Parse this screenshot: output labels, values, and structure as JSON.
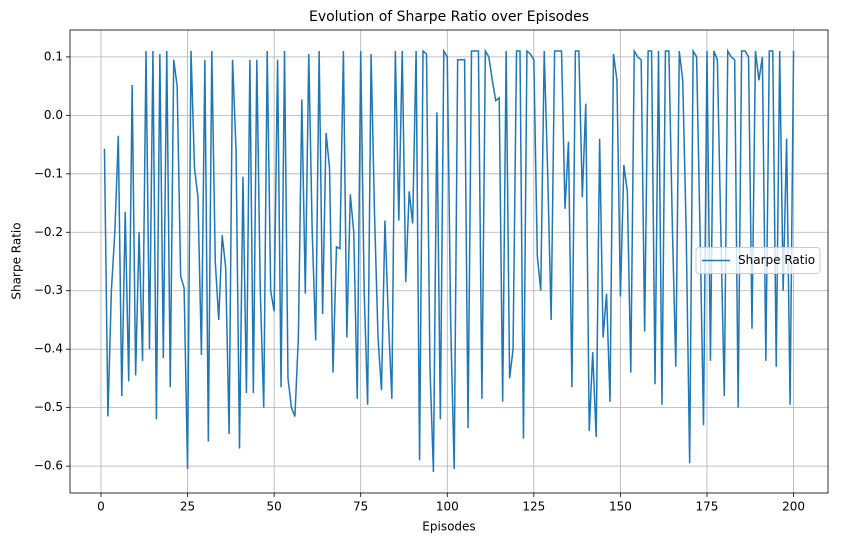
{
  "chart_data": {
    "type": "line",
    "title": "Evolution of Sharpe Ratio over Episodes",
    "x_label": "Episodes",
    "y_label": "Sharpe Ratio",
    "x": [
      1,
      2,
      3,
      4,
      5,
      6,
      7,
      8,
      9,
      10,
      11,
      12,
      13,
      14,
      15,
      16,
      17,
      18,
      19,
      20,
      21,
      22,
      23,
      24,
      25,
      26,
      27,
      28,
      29,
      30,
      31,
      32,
      33,
      34,
      35,
      36,
      37,
      38,
      39,
      40,
      41,
      42,
      43,
      44,
      45,
      46,
      47,
      48,
      49,
      50,
      51,
      52,
      53,
      54,
      55,
      56,
      57,
      58,
      59,
      60,
      61,
      62,
      63,
      64,
      65,
      66,
      67,
      68,
      69,
      70,
      71,
      72,
      73,
      74,
      75,
      76,
      77,
      78,
      79,
      80,
      81,
      82,
      83,
      84,
      85,
      86,
      87,
      88,
      89,
      90,
      91,
      92,
      93,
      94,
      95,
      96,
      97,
      98,
      99,
      100,
      101,
      102,
      103,
      104,
      105,
      106,
      107,
      108,
      109,
      110,
      111,
      112,
      113,
      114,
      115,
      116,
      117,
      118,
      119,
      120,
      121,
      122,
      123,
      124,
      125,
      126,
      127,
      128,
      129,
      130,
      131,
      132,
      133,
      134,
      135,
      136,
      137,
      138,
      139,
      140,
      141,
      142,
      143,
      144,
      145,
      146,
      147,
      148,
      149,
      150,
      151,
      152,
      153,
      154,
      155,
      156,
      157,
      158,
      159,
      160,
      161,
      162,
      163,
      164,
      165,
      166,
      167,
      168,
      169,
      170,
      171,
      172,
      173,
      174,
      175,
      176,
      177,
      178,
      179,
      180,
      181,
      182,
      183,
      184,
      185,
      186,
      187,
      188,
      189,
      190,
      191,
      192,
      193,
      194,
      195,
      196,
      197,
      198,
      199,
      200
    ],
    "series": [
      {
        "name": "Sharpe Ratio",
        "color": "#1f77b4",
        "values": [
          -0.057,
          -0.515,
          -0.3,
          -0.2,
          -0.035,
          -0.48,
          -0.165,
          -0.455,
          0.052,
          -0.445,
          -0.2,
          -0.42,
          0.11,
          -0.4,
          0.11,
          -0.52,
          0.105,
          -0.415,
          0.11,
          -0.465,
          0.095,
          0.05,
          -0.275,
          -0.295,
          -0.605,
          0.11,
          -0.09,
          -0.14,
          -0.41,
          0.095,
          -0.558,
          0.11,
          -0.25,
          -0.35,
          -0.205,
          -0.26,
          -0.545,
          0.095,
          -0.06,
          -0.57,
          -0.105,
          -0.475,
          0.095,
          -0.475,
          0.095,
          -0.3,
          -0.5,
          0.11,
          -0.3,
          -0.335,
          0.095,
          -0.465,
          0.11,
          -0.45,
          -0.5,
          -0.515,
          -0.38,
          0.027,
          -0.305,
          0.105,
          -0.2,
          -0.385,
          0.11,
          -0.34,
          -0.03,
          -0.09,
          -0.44,
          -0.225,
          -0.228,
          0.11,
          -0.38,
          -0.135,
          -0.2,
          -0.485,
          0.11,
          -0.3,
          -0.495,
          0.105,
          -0.17,
          -0.38,
          -0.47,
          -0.18,
          -0.35,
          -0.485,
          0.11,
          -0.18,
          0.11,
          -0.285,
          -0.13,
          -0.185,
          0.11,
          -0.59,
          0.11,
          0.105,
          -0.43,
          -0.61,
          0.005,
          -0.52,
          0.11,
          0.1,
          -0.36,
          -0.605,
          0.095,
          0.095,
          0.095,
          -0.535,
          0.11,
          0.11,
          0.11,
          -0.485,
          0.11,
          0.1,
          0.06,
          0.025,
          0.03,
          -0.49,
          0.11,
          -0.45,
          -0.4,
          0.11,
          0.11,
          -0.553,
          0.11,
          0.105,
          0.095,
          -0.24,
          -0.3,
          0.11,
          -0.1,
          -0.35,
          0.11,
          0.11,
          0.11,
          -0.16,
          -0.045,
          -0.465,
          0.11,
          0.11,
          -0.14,
          0.02,
          -0.54,
          -0.405,
          -0.55,
          -0.04,
          -0.38,
          -0.305,
          -0.49,
          0.105,
          0.06,
          -0.31,
          -0.085,
          -0.13,
          -0.44,
          0.11,
          0.1,
          0.095,
          -0.37,
          0.11,
          0.11,
          -0.46,
          0.11,
          -0.495,
          0.11,
          0.11,
          -0.19,
          -0.43,
          0.11,
          0.06,
          -0.2,
          -0.595,
          0.11,
          0.1,
          -0.2,
          -0.53,
          0.11,
          -0.42,
          0.11,
          0.095,
          -0.2,
          -0.48,
          0.11,
          0.1,
          0.095,
          -0.5,
          0.11,
          0.11,
          0.1,
          -0.365,
          0.11,
          0.06,
          0.1,
          -0.42,
          0.11,
          0.11,
          -0.43,
          0.11,
          -0.3,
          -0.04,
          -0.495,
          0.11
        ]
      }
    ],
    "xlim": [
      -8.95,
      209.95
    ],
    "ylim": [
      -0.646,
      0.146
    ],
    "xticks": [
      0,
      25,
      50,
      75,
      100,
      125,
      150,
      175,
      200
    ],
    "yticks": [
      {
        "value": -0.6,
        "label": "−0.6"
      },
      {
        "value": -0.5,
        "label": "−0.5"
      },
      {
        "value": -0.4,
        "label": "−0.4"
      },
      {
        "value": -0.3,
        "label": "−0.3"
      },
      {
        "value": -0.2,
        "label": "−0.2"
      },
      {
        "value": -0.1,
        "label": "−0.1"
      },
      {
        "value": 0,
        "label": "0.0"
      },
      0.1
    ],
    "grid": true,
    "legend": "center right"
  }
}
